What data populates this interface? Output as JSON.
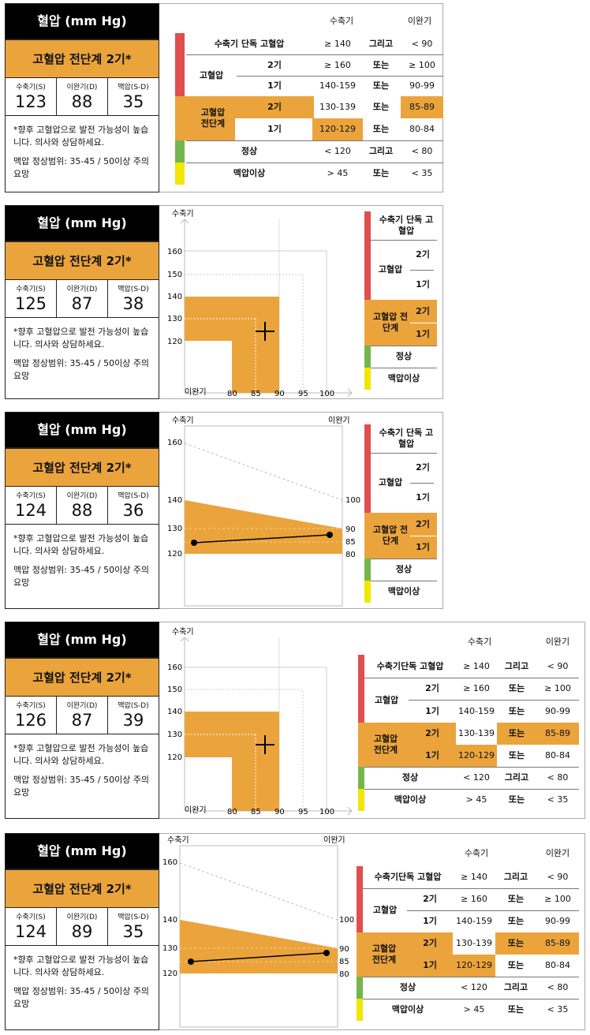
{
  "common": {
    "title": "혈압 (mm Hg)",
    "stage": "고혈압 전단계 2기*",
    "label_sys": "수축기(S)",
    "label_dia": "이완기(D)",
    "label_pulse": "맥압(S-D)",
    "note1": "*향후 고혈압으로 발전 가능성이 높습니다. 의사와 상담하세요.",
    "note2": "맥압 정상범위: 35-45 / 50이상 주의 요망"
  },
  "cards": [
    {
      "sys": "123",
      "dia": "88",
      "pulse": "35"
    },
    {
      "sys": "125",
      "dia": "87",
      "pulse": "38"
    },
    {
      "sys": "124",
      "dia": "88",
      "pulse": "36"
    },
    {
      "sys": "126",
      "dia": "87",
      "pulse": "39"
    },
    {
      "sys": "124",
      "dia": "89",
      "pulse": "35"
    }
  ],
  "table": {
    "col_sys": "수축기",
    "col_dia": "이완기",
    "isolated": "수축기 단독 고혈압",
    "isolated_nospace": "수축기단독 고혈압",
    "isolated_wrap": "수축기 단독 고혈압",
    "hypertension": "고혈압",
    "prehyp": "고혈압 전단계",
    "stage2": "2기",
    "stage1": "1기",
    "normal": "정상",
    "hypo": "맥압이상",
    "and": "그리고",
    "or": "또는",
    "iso_s": "≥ 140",
    "iso_d": "< 90",
    "h2_s": "≥ 160",
    "h2_d": "≥ 100",
    "h1_s": "140-159",
    "h1_d": "90-99",
    "p2_s": "130-139",
    "p2_d": "85-89",
    "p1_s": "120-129",
    "p1_d": "80-84",
    "n_s": "< 120",
    "n_d": "< 80",
    "l_s": "> 45",
    "l_d": "< 35"
  },
  "chart_data": [
    {
      "type": "area",
      "xlabel": "이완기",
      "ylabel": "수축기",
      "x_ticks": [
        "80",
        "85",
        "90",
        "95",
        "100"
      ],
      "y_ticks": [
        "120",
        "130",
        "140",
        "150",
        "160"
      ],
      "marker": {
        "x": 87,
        "y": 125
      }
    },
    {
      "type": "line",
      "left_axis": "수축기",
      "right_axis": "이완기",
      "left_ticks": [
        "120",
        "130",
        "140",
        "160"
      ],
      "right_ticks": [
        "80",
        "85",
        "90",
        "100"
      ],
      "segment": {
        "sys": 124,
        "dia": 88
      }
    }
  ],
  "colors": {
    "orange": "#EBA43C",
    "red": "#E04E4E",
    "green": "#74B64E",
    "yellow": "#F2E600"
  }
}
